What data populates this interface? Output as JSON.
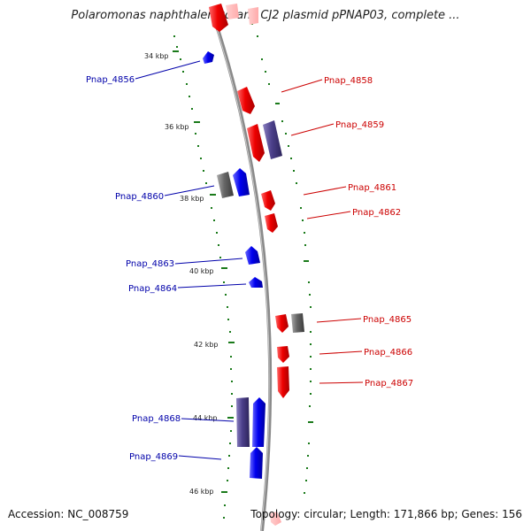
{
  "title": "Polaromonas naphthalenivorans CJ2 plasmid pPNAP03, complete ...",
  "accession": "Accession: NC_008759",
  "summary": "Topology: circular; Length: 171,866 bp; Genes: 156",
  "colors": {
    "backbone": "#8a8a8a",
    "forward_gene": "#ee0000",
    "reverse_gene": "#0000ee",
    "other_gene": "#4b3f8a",
    "gray_gene": "#666666",
    "tick": "#1a7a1a",
    "label_blue": "#0000aa",
    "label_red": "#cc0000"
  },
  "scale": [
    {
      "label": "34 kbp"
    },
    {
      "label": "36 kbp"
    },
    {
      "label": "38 kbp"
    },
    {
      "label": "40 kbp"
    },
    {
      "label": "42 kbp"
    },
    {
      "label": "44 kbp"
    },
    {
      "label": "46 kbp"
    }
  ],
  "gene_labels_left": [
    {
      "name": "Pnap_4856"
    },
    {
      "name": "Pnap_4860"
    },
    {
      "name": "Pnap_4863"
    },
    {
      "name": "Pnap_4864"
    },
    {
      "name": "Pnap_4868"
    },
    {
      "name": "Pnap_4869"
    }
  ],
  "gene_labels_right": [
    {
      "name": "Pnap_4858"
    },
    {
      "name": "Pnap_4859"
    },
    {
      "name": "Pnap_4861"
    },
    {
      "name": "Pnap_4862"
    },
    {
      "name": "Pnap_4865"
    },
    {
      "name": "Pnap_4866"
    },
    {
      "name": "Pnap_4867"
    }
  ]
}
